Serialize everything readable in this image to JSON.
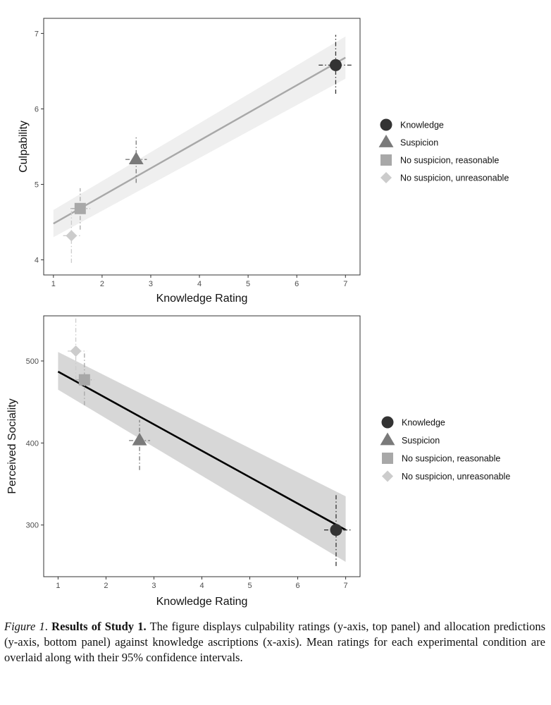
{
  "chart_data": [
    {
      "type": "scatter",
      "panel": "top",
      "xlabel": "Knowledge Rating",
      "ylabel": "Culpability",
      "xlim": [
        0.8,
        7.3
      ],
      "ylim": [
        3.8,
        7.2
      ],
      "xticks": [
        1,
        2,
        3,
        4,
        5,
        6,
        7
      ],
      "yticks": [
        4,
        5,
        6,
        7
      ],
      "grid": false,
      "legend_position": "right",
      "regression": {
        "x_range": [
          1.0,
          7.0
        ],
        "y_start": 4.48,
        "y_end": 6.68,
        "ci_lower": [
          4.3,
          6.4
        ],
        "ci_upper": [
          4.66,
          6.96
        ],
        "line_color": "#a8a8a8",
        "band_color": "#efefef"
      },
      "points": [
        {
          "name": "Knowledge",
          "shape": "circle",
          "color": "#333333",
          "x": 6.8,
          "y": 6.58,
          "x_ci": [
            6.45,
            7.15
          ],
          "y_ci": [
            6.2,
            6.98
          ]
        },
        {
          "name": "Suspicion",
          "shape": "triangle",
          "color": "#7a7a7a",
          "x": 2.7,
          "y": 5.33,
          "x_ci": [
            2.48,
            2.92
          ],
          "y_ci": [
            5.02,
            5.64
          ]
        },
        {
          "name": "No suspicion, reasonable",
          "shape": "square",
          "color": "#a8a8a8",
          "x": 1.55,
          "y": 4.68,
          "x_ci": [
            1.35,
            1.75
          ],
          "y_ci": [
            4.4,
            4.95
          ]
        },
        {
          "name": "No suspicion, unreasonable",
          "shape": "diamond",
          "color": "#cccccc",
          "x": 1.37,
          "y": 4.32,
          "x_ci": [
            1.2,
            1.55
          ],
          "y_ci": [
            3.96,
            4.68
          ]
        }
      ]
    },
    {
      "type": "scatter",
      "panel": "bottom",
      "xlabel": "Knowledge Rating",
      "ylabel": "Perceived Sociality",
      "xlim": [
        0.7,
        7.3
      ],
      "ylim": [
        237,
        555
      ],
      "xticks": [
        1,
        2,
        3,
        4,
        5,
        6,
        7
      ],
      "yticks": [
        300,
        400,
        500
      ],
      "grid": false,
      "legend_position": "right",
      "regression": {
        "x_range": [
          1.0,
          7.0
        ],
        "y_start": 487,
        "y_end": 294,
        "ci_lower": [
          465,
          255
        ],
        "ci_upper": [
          511,
          335
        ],
        "line_color": "#000000",
        "band_color": "#d7d7d7"
      },
      "points": [
        {
          "name": "Knowledge",
          "shape": "circle",
          "color": "#333333",
          "x": 6.8,
          "y": 294,
          "x_ci": [
            6.55,
            7.1
          ],
          "y_ci": [
            250,
            337
          ]
        },
        {
          "name": "Suspicion",
          "shape": "triangle",
          "color": "#7a7a7a",
          "x": 2.7,
          "y": 403,
          "x_ci": [
            2.48,
            2.92
          ],
          "y_ci": [
            367,
            428
          ]
        },
        {
          "name": "No suspicion, reasonable",
          "shape": "square",
          "color": "#a8a8a8",
          "x": 1.55,
          "y": 477,
          "x_ci": [
            1.35,
            1.75
          ],
          "y_ci": [
            446,
            510
          ]
        },
        {
          "name": "No suspicion, unreasonable",
          "shape": "diamond",
          "color": "#cccccc",
          "x": 1.37,
          "y": 512,
          "x_ci": [
            1.2,
            1.6
          ],
          "y_ci": [
            477,
            552
          ]
        }
      ]
    }
  ],
  "caption": {
    "label": "Figure 1",
    "label_suffix": ". ",
    "title": "Results of Study 1.",
    "text": " The figure displays culpability ratings (y-axis, top panel) and allocation predictions (y-axis, bottom panel) against knowledge ascriptions (x-axis). Mean ratings for each experimental condition are overlaid along with their 95% confidence intervals."
  }
}
